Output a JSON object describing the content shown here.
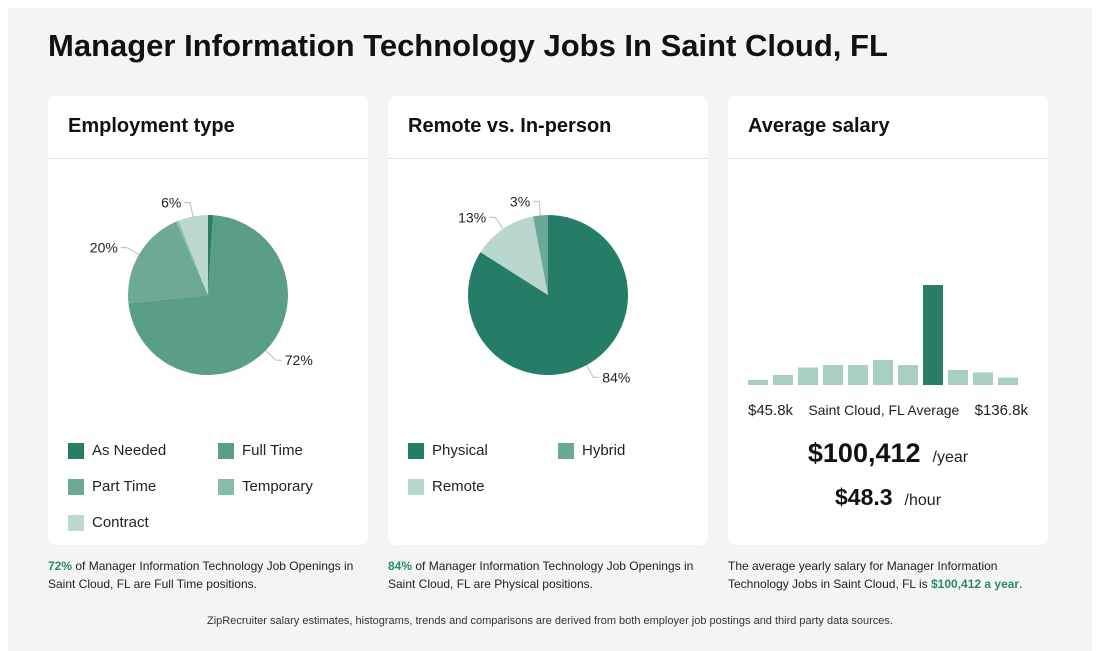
{
  "page": {
    "title": "Manager Information Technology Jobs In Saint Cloud, FL"
  },
  "colors": {
    "as_needed": "#2a7d66",
    "full_time": "#5a9e88",
    "part_time": "#6ea997",
    "temporary": "#87bbaa",
    "contract": "#bcd9cf",
    "physical": "#267d67",
    "hybrid": "#6aa998",
    "remote": "#b9d7ce",
    "hist_bar": "#a9cec2",
    "hist_highlight": "#2a7d66",
    "highlight_text": "#2c8a6b"
  },
  "employment": {
    "heading": "Employment type",
    "legend": [
      "As Needed",
      "Full Time",
      "Part Time",
      "Temporary",
      "Contract"
    ],
    "caption": {
      "pct": "72%",
      "text": " of Manager Information Technology Job Openings in Saint Cloud, FL are Full Time positions."
    }
  },
  "remote": {
    "heading": "Remote vs. In-person",
    "legend": [
      "Physical",
      "Hybrid",
      "Remote"
    ],
    "caption": {
      "pct": "84%",
      "text": " of Manager Information Technology Job Openings in Saint Cloud, FL are Physical positions."
    }
  },
  "salary": {
    "heading": "Average salary",
    "min_label": "$45.8k",
    "mid_label": "Saint Cloud, FL Average",
    "max_label": "$136.8k",
    "yearly": "$100,412",
    "yearly_unit": "/year",
    "hourly": "$48.3",
    "hourly_unit": "/hour",
    "caption": {
      "text": "The average yearly salary for Manager Information Technology Jobs in Saint Cloud, FL is ",
      "highlight": "$100,412 a year",
      "end": "."
    }
  },
  "footer": "ZipRecruiter salary estimates, histograms, trends and comparisons are derived from both employer job postings and third party data sources.",
  "chart_data": [
    {
      "type": "pie",
      "title": "Employment type",
      "categories": [
        "As Needed",
        "Full Time",
        "Part Time",
        "Temporary",
        "Contract"
      ],
      "values": [
        1,
        72,
        20,
        0.5,
        6
      ],
      "slice_labels": [
        "",
        "72%",
        "20%",
        "",
        "6%"
      ]
    },
    {
      "type": "pie",
      "title": "Remote vs. In-person",
      "categories": [
        "Physical",
        "Remote",
        "Hybrid"
      ],
      "values": [
        84,
        13,
        3
      ],
      "slice_labels": [
        "84%",
        "13%",
        "3%"
      ]
    },
    {
      "type": "bar",
      "title": "Average salary",
      "xlabel_min": "$45.8k",
      "xlabel_max": "$136.8k",
      "values": [
        2,
        4,
        7,
        8,
        8,
        10,
        8,
        40,
        6,
        5,
        3
      ],
      "highlight_index": 7,
      "ylim": [
        0,
        40
      ]
    }
  ]
}
